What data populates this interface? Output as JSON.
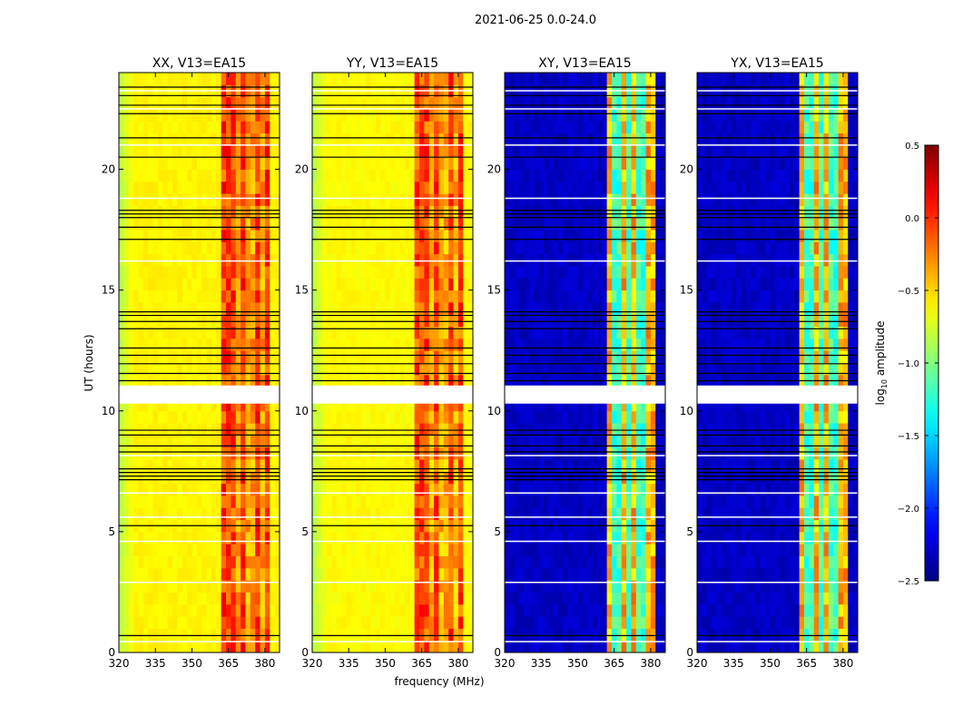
{
  "chart_data": {
    "type": "heatmap",
    "title": "2021-06-25 0.0-24.0",
    "xlabel": "frequency (MHz)",
    "ylabel": "UT (hours)",
    "xlim": [
      320,
      386
    ],
    "ylim": [
      0,
      24
    ],
    "xticks": [
      "320",
      "335",
      "350",
      "365",
      "380"
    ],
    "yticks": [
      "0",
      "5",
      "10",
      "15",
      "20"
    ],
    "colorbar": {
      "label": "log10 amplitude",
      "label_main": "log",
      "label_sub": "10",
      "label_rest": " amplitude",
      "range": [
        -2.5,
        0.5
      ],
      "ticks": [
        "0.5",
        "0.0",
        "−0.5",
        "−1.0",
        "−1.5",
        "−2.0",
        "−2.5"
      ],
      "tick_values": [
        0.5,
        0.0,
        -0.5,
        -1.0,
        -1.5,
        -2.0,
        -2.5
      ],
      "colormap": "jet"
    },
    "panels": [
      {
        "title": "XX, V13=EA15",
        "base_level": -0.6,
        "edge_level": -0.85,
        "band_mhz": [
          363,
          381
        ],
        "band_level": -0.05,
        "stripe_mhz": [
          369,
          374,
          379
        ],
        "stripe_level": -0.35
      },
      {
        "title": "YY, V13=EA15",
        "base_level": -0.62,
        "edge_level": -0.85,
        "band_mhz": [
          363,
          381
        ],
        "band_level": -0.1,
        "stripe_mhz": [
          369,
          374,
          379
        ],
        "stripe_level": -0.4
      },
      {
        "title": "XY, V13=EA15",
        "base_level": -2.3,
        "edge_level": -2.3,
        "band_mhz": [
          363,
          381
        ],
        "band_level": -0.4,
        "stripe_mhz": [
          366,
          371,
          376
        ],
        "stripe_level": -1.2
      },
      {
        "title": "YX, V13=EA15",
        "base_level": -2.3,
        "edge_level": -2.3,
        "band_mhz": [
          363,
          381
        ],
        "band_level": -0.4,
        "stripe_mhz": [
          366,
          371,
          376
        ],
        "stripe_level": -1.2
      }
    ],
    "flagged_gap_hours": [
      10.3,
      11.05
    ],
    "black_line_hours": [
      0.7,
      5.25,
      7.15,
      7.3,
      7.45,
      7.6,
      8.3,
      8.55,
      9.0,
      9.2,
      11.25,
      11.55,
      11.95,
      12.3,
      12.6,
      13.4,
      13.7,
      13.95,
      14.1,
      17.1,
      17.6,
      18.0,
      18.15,
      18.3,
      20.5,
      21.3,
      22.3,
      22.65,
      23.05,
      23.4
    ],
    "white_line_hours": [
      0.45,
      2.9,
      4.6,
      5.6,
      6.6,
      8.15,
      16.2,
      18.8,
      21.0,
      22.5,
      23.25
    ]
  }
}
